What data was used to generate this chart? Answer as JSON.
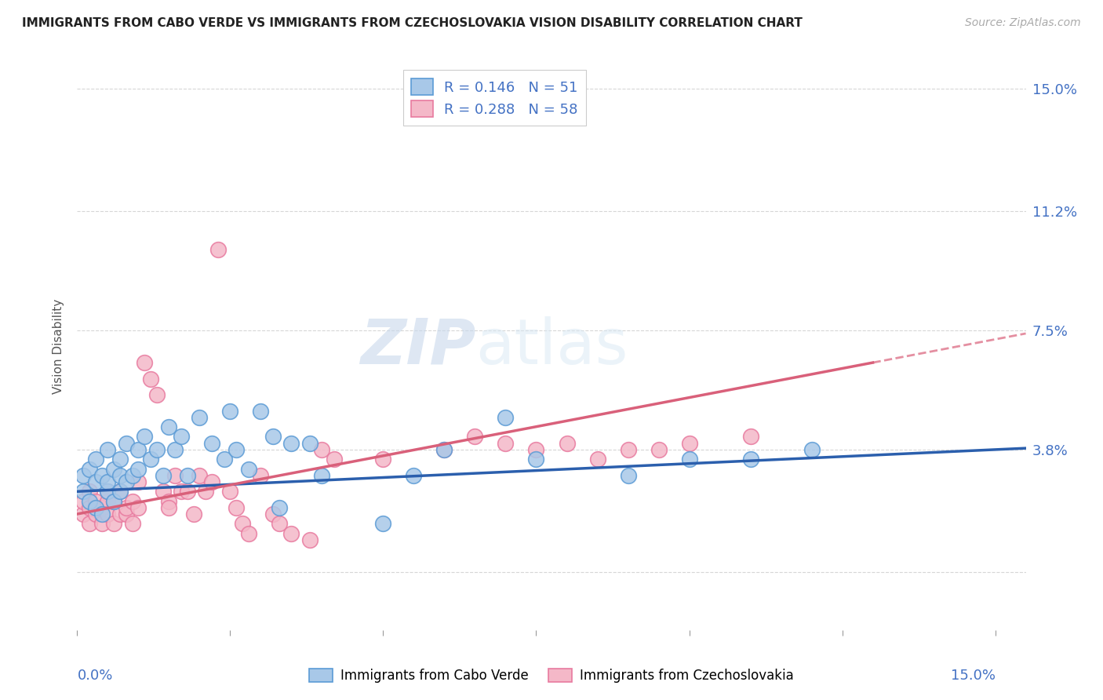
{
  "title": "IMMIGRANTS FROM CABO VERDE VS IMMIGRANTS FROM CZECHOSLOVAKIA VISION DISABILITY CORRELATION CHART",
  "source": "Source: ZipAtlas.com",
  "ylabel": "Vision Disability",
  "y_ticks": [
    0.0,
    0.038,
    0.075,
    0.112,
    0.15
  ],
  "y_tick_labels": [
    "",
    "3.8%",
    "7.5%",
    "11.2%",
    "15.0%"
  ],
  "xlim": [
    0.0,
    0.155
  ],
  "ylim": [
    -0.018,
    0.158
  ],
  "cabo_verde_color": "#a8c8e8",
  "czechoslovakia_color": "#f4b8c8",
  "cabo_verde_edge_color": "#5b9bd5",
  "czechoslovakia_edge_color": "#e87a9f",
  "cabo_verde_line_color": "#2b5fad",
  "czechoslovakia_line_color": "#d9607a",
  "cabo_verde_R": 0.146,
  "cabo_verde_N": 51,
  "czechoslovakia_R": 0.288,
  "czechoslovakia_N": 58,
  "cabo_verde_points_x": [
    0.001,
    0.001,
    0.002,
    0.002,
    0.003,
    0.003,
    0.003,
    0.004,
    0.004,
    0.005,
    0.005,
    0.005,
    0.006,
    0.006,
    0.007,
    0.007,
    0.007,
    0.008,
    0.008,
    0.009,
    0.01,
    0.01,
    0.011,
    0.012,
    0.013,
    0.014,
    0.015,
    0.016,
    0.017,
    0.018,
    0.02,
    0.022,
    0.024,
    0.025,
    0.026,
    0.028,
    0.03,
    0.032,
    0.033,
    0.035,
    0.038,
    0.04,
    0.05,
    0.055,
    0.06,
    0.07,
    0.075,
    0.09,
    0.1,
    0.11,
    0.12
  ],
  "cabo_verde_points_y": [
    0.025,
    0.03,
    0.022,
    0.032,
    0.02,
    0.028,
    0.035,
    0.018,
    0.03,
    0.025,
    0.038,
    0.028,
    0.022,
    0.032,
    0.03,
    0.035,
    0.025,
    0.04,
    0.028,
    0.03,
    0.038,
    0.032,
    0.042,
    0.035,
    0.038,
    0.03,
    0.045,
    0.038,
    0.042,
    0.03,
    0.048,
    0.04,
    0.035,
    0.05,
    0.038,
    0.032,
    0.05,
    0.042,
    0.02,
    0.04,
    0.04,
    0.03,
    0.015,
    0.03,
    0.038,
    0.048,
    0.035,
    0.03,
    0.035,
    0.035,
    0.038
  ],
  "czechoslovakia_points_x": [
    0.001,
    0.001,
    0.002,
    0.002,
    0.002,
    0.003,
    0.003,
    0.004,
    0.004,
    0.005,
    0.005,
    0.005,
    0.006,
    0.006,
    0.007,
    0.007,
    0.008,
    0.008,
    0.009,
    0.009,
    0.01,
    0.01,
    0.011,
    0.012,
    0.013,
    0.014,
    0.015,
    0.015,
    0.016,
    0.017,
    0.018,
    0.019,
    0.02,
    0.021,
    0.022,
    0.023,
    0.025,
    0.026,
    0.027,
    0.028,
    0.03,
    0.032,
    0.033,
    0.035,
    0.038,
    0.04,
    0.042,
    0.05,
    0.06,
    0.065,
    0.07,
    0.075,
    0.08,
    0.085,
    0.09,
    0.095,
    0.1,
    0.11
  ],
  "czechoslovakia_points_y": [
    0.018,
    0.022,
    0.015,
    0.02,
    0.025,
    0.018,
    0.022,
    0.015,
    0.02,
    0.022,
    0.018,
    0.025,
    0.015,
    0.022,
    0.018,
    0.025,
    0.018,
    0.02,
    0.015,
    0.022,
    0.02,
    0.028,
    0.065,
    0.06,
    0.055,
    0.025,
    0.022,
    0.02,
    0.03,
    0.025,
    0.025,
    0.018,
    0.03,
    0.025,
    0.028,
    0.1,
    0.025,
    0.02,
    0.015,
    0.012,
    0.03,
    0.018,
    0.015,
    0.012,
    0.01,
    0.038,
    0.035,
    0.035,
    0.038,
    0.042,
    0.04,
    0.038,
    0.04,
    0.035,
    0.038,
    0.038,
    0.04,
    0.042
  ],
  "watermark_zip": "ZIP",
  "watermark_atlas": "atlas",
  "background_color": "#ffffff",
  "grid_color": "#cccccc",
  "legend_r_n_color": "#4472c4",
  "axis_label_color": "#4472c4"
}
